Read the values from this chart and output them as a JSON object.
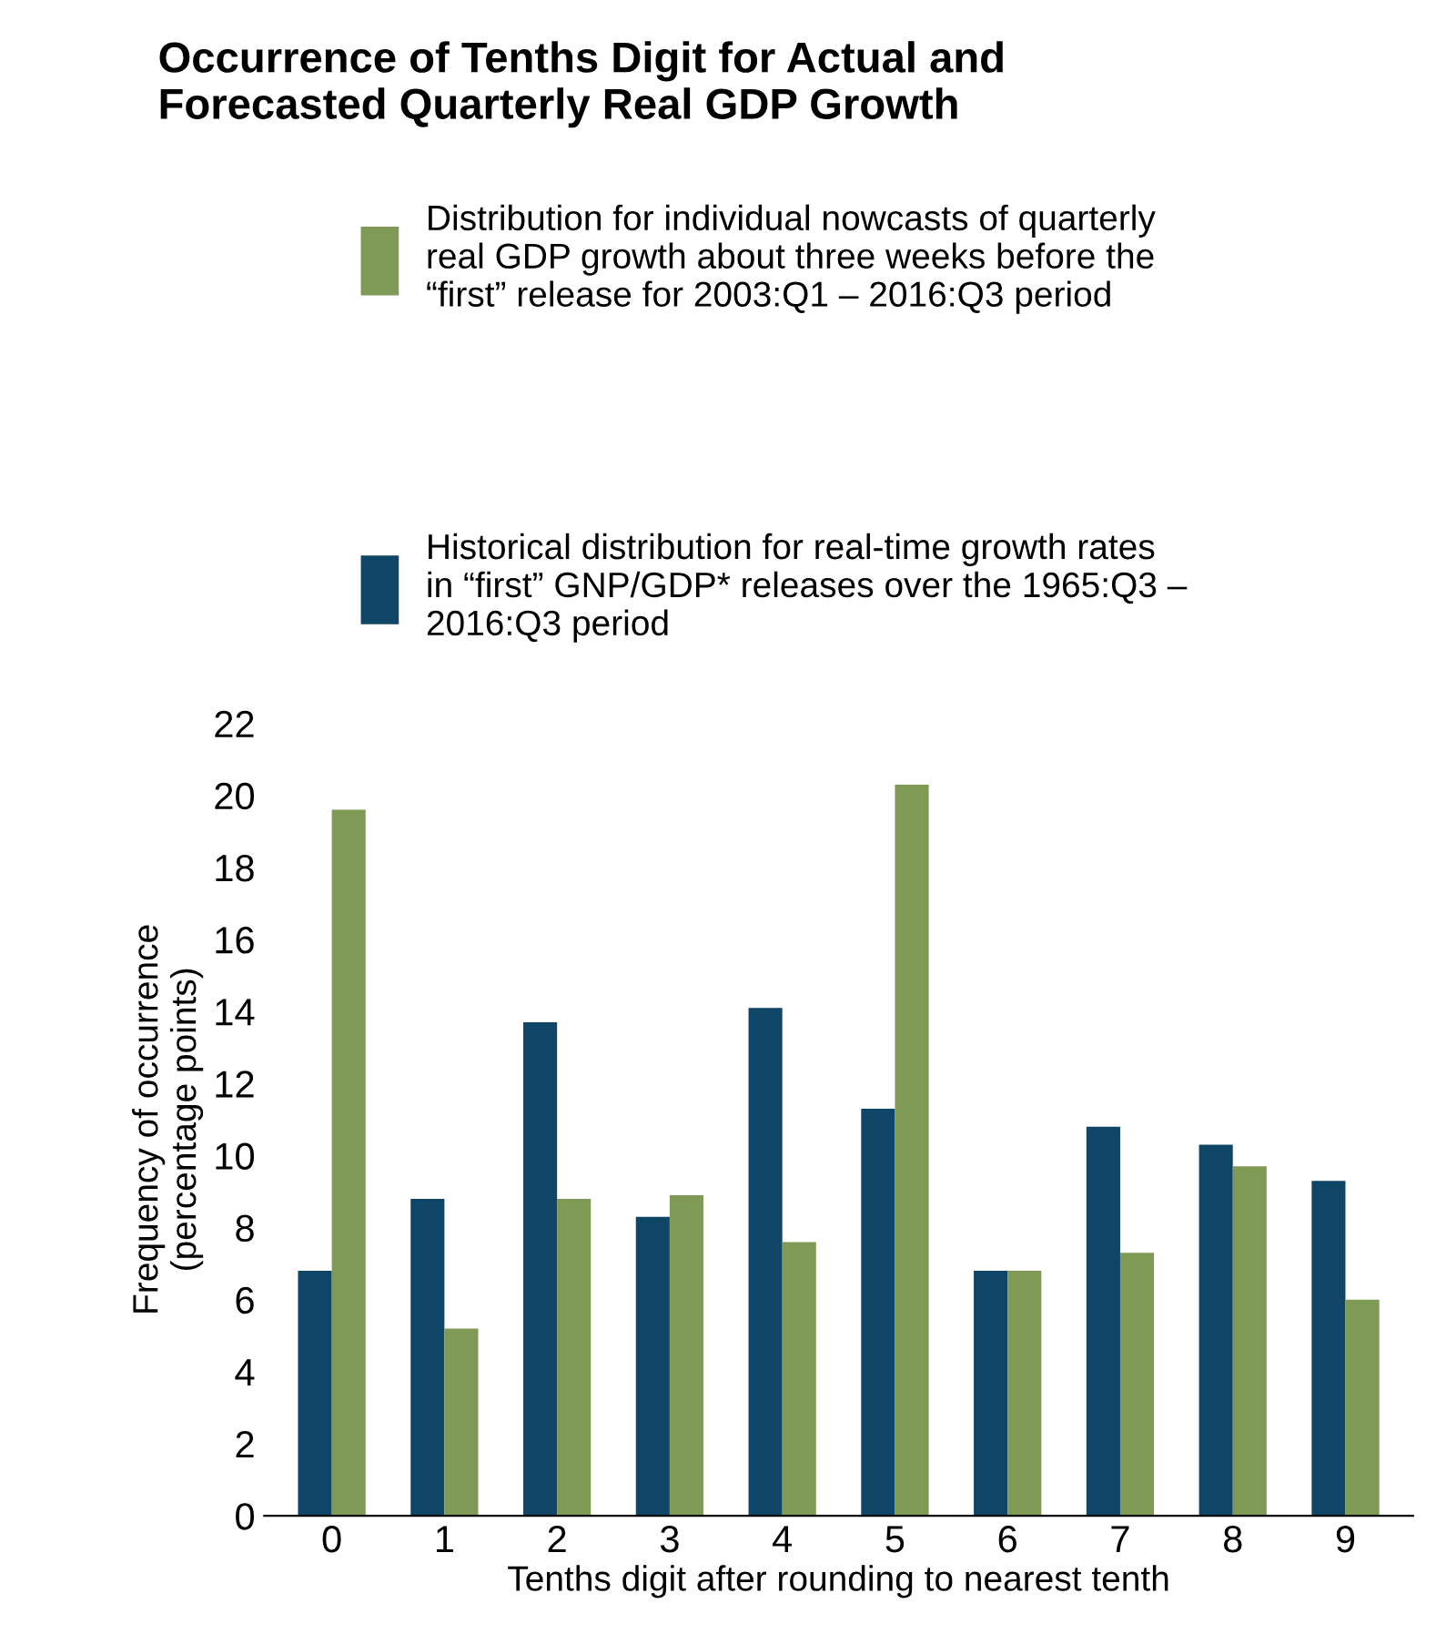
{
  "chart_data": {
    "type": "bar",
    "title": "Occurrence of Tenths Digit for Actual and Forecasted Quarterly Real GDP Growth",
    "xlabel": "Tenths digit after rounding to nearest tenth",
    "ylabel": "Frequency of occurrence\n(percentage points)",
    "categories": [
      "0",
      "1",
      "2",
      "3",
      "4",
      "5",
      "6",
      "7",
      "8",
      "9"
    ],
    "series": [
      {
        "name": "Historical distribution for real-time growth rates in “first” GNP/GDP* releases over the 1965:Q3 – 2016:Q3 period",
        "color": "#0f4566",
        "values": [
          6.8,
          8.8,
          13.7,
          8.3,
          14.1,
          11.3,
          6.8,
          10.8,
          10.3,
          9.3
        ]
      },
      {
        "name": "Distribution for individual nowcasts of quarterly real GDP growth about three weeks before the “first” release for 2003:Q1 – 2016:Q3 period",
        "color": "#7f9a55",
        "values": [
          19.6,
          5.2,
          8.8,
          8.9,
          7.6,
          20.3,
          6.8,
          7.3,
          9.7,
          6.0
        ]
      }
    ],
    "ylim": [
      0,
      22
    ],
    "yticks": [
      0,
      2,
      4,
      6,
      8,
      10,
      12,
      14,
      16,
      18,
      20,
      22
    ],
    "grid": false,
    "legend": "top"
  }
}
